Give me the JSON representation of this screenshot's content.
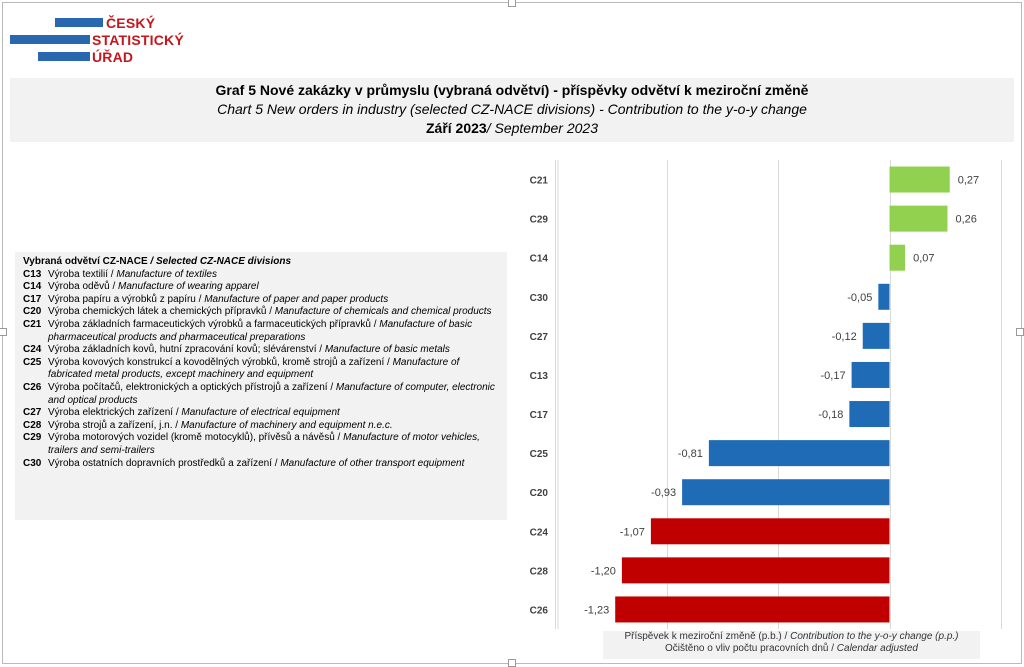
{
  "logo": {
    "lines": [
      "ČESKÝ",
      "STATISTICKÝ",
      "ÚŘAD"
    ]
  },
  "title": {
    "cz": "Graf 5 Nové zakázky v průmyslu (vybraná odvětví) - příspěvky odvětví k meziroční změně",
    "en": "Chart 5 New orders in industry (selected CZ-NACE divisions) - Contribution to the y-o-y change",
    "period_cz": "Září 2023",
    "period_en": "/ September 2023"
  },
  "legend": {
    "header_cz": "Vybraná odvětví CZ-NACE",
    "header_en": " / Selected CZ-NACE divisions",
    "items": [
      {
        "code": "C13",
        "cz": "Výroba textilií /",
        "en": " Manufacture of textiles"
      },
      {
        "code": "C14",
        "cz": "Výroba oděvů /",
        "en": " Manufacture of wearing apparel"
      },
      {
        "code": "C17",
        "cz": "Výroba papíru a výrobků z papíru /",
        "en": " Manufacture of paper and paper products"
      },
      {
        "code": "C20",
        "cz": "Výroba chemických látek a chemických přípravků /",
        "en": " Manufacture of chemicals and chemical products"
      },
      {
        "code": "C21",
        "cz": "Výroba základních farmaceutických výrobků a farmaceutických přípravků /",
        "en": " Manufacture of basic pharmaceutical products and pharmaceutical preparations"
      },
      {
        "code": "C24",
        "cz": "Výroba základních kovů, hutní zpracování kovů; slévárenství /",
        "en": " Manufacture of basic metals"
      },
      {
        "code": "C25",
        "cz": "Výroba kovových konstrukcí a kovodělných výrobků, kromě strojů a zařízení /",
        "en": " Manufacture of fabricated metal products, except machinery and equipment"
      },
      {
        "code": "C26",
        "cz": "Výroba počítačů, elektronických a optických přístrojů a zařízení /",
        "en": " Manufacture of computer, electronic and optical products"
      },
      {
        "code": "C27",
        "cz": "Výroba elektrických zařízení /",
        "en": " Manufacture of electrical equipment"
      },
      {
        "code": "C28",
        "cz": "Výroba strojů a zařízení, j.n. /",
        "en": " Manufacture of machinery and equipment n.e.c."
      },
      {
        "code": "C29",
        "cz": "Výroba motorových vozidel (kromě motocyklů), přívěsů a návěsů /",
        "en": " Manufacture of motor vehicles, trailers and semi-trailers"
      },
      {
        "code": "C30",
        "cz": "Výroba ostatních dopravních prostředků a zařízení /",
        "en": " Manufacture of other transport equipment"
      }
    ]
  },
  "axis_note": {
    "line1_cz": "Příspěvek k meziroční změně (p.b.) /",
    "line1_en": " Contribution to the y-o-y change (p.p.)",
    "line2_cz": "Očištěno o vliv počtu pracovních dnů /",
    "line2_en": " Calendar adjusted"
  },
  "chart_data": {
    "type": "bar",
    "orientation": "horizontal",
    "categories": [
      "C21",
      "C29",
      "C14",
      "C30",
      "C27",
      "C13",
      "C17",
      "C25",
      "C20",
      "C24",
      "C28",
      "C26"
    ],
    "values": [
      0.27,
      0.26,
      0.07,
      -0.05,
      -0.12,
      -0.17,
      -0.18,
      -0.81,
      -0.93,
      -1.07,
      -1.2,
      -1.23
    ],
    "labels": [
      "0,27",
      "0,26",
      "0,07",
      "-0,05",
      "-0,12",
      "-0,17",
      "-0,18",
      "-0,81",
      "-0,93",
      "-1,07",
      "-1,20",
      "-1,23"
    ],
    "colors": [
      "#92d050",
      "#92d050",
      "#92d050",
      "#1f6bb5",
      "#1f6bb5",
      "#1f6bb5",
      "#1f6bb5",
      "#1f6bb5",
      "#1f6bb5",
      "#c00000",
      "#c00000",
      "#c00000"
    ],
    "xlim": [
      -1.5,
      0.5
    ],
    "gridlines": [
      -1.5,
      -1.0,
      -0.5,
      0.0,
      0.5
    ],
    "grid": true
  }
}
